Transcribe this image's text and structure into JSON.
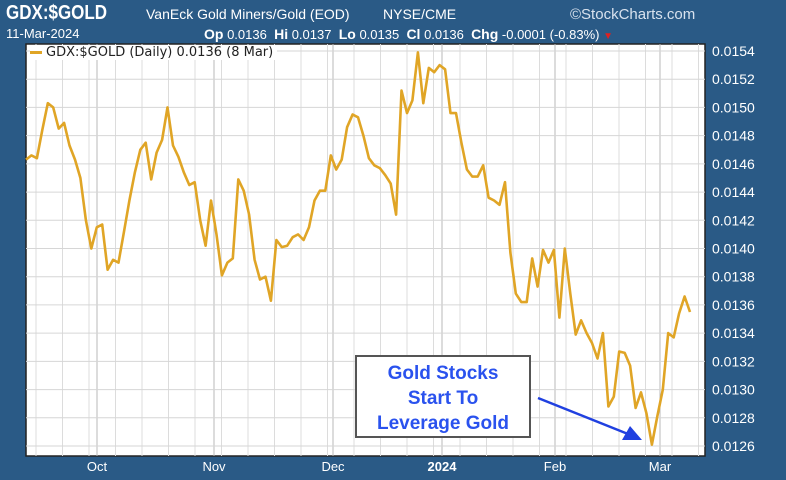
{
  "header": {
    "symbol": "GDX:$GOLD",
    "description": "VanEck Gold Miners/Gold (EOD)",
    "exchange": "NYSE/CME",
    "brand": "©StockCharts.com",
    "date": "11-Mar-2024",
    "op_label": "Op",
    "op": "0.0136",
    "hi_label": "Hi",
    "hi": "0.0137",
    "lo_label": "Lo",
    "lo": "0.0135",
    "cl_label": "Cl",
    "cl": "0.0136",
    "chg_label": "Chg",
    "chg": "-0.0001 (-0.83%)",
    "down_arrow": "▼"
  },
  "annotation": {
    "lines": [
      "Gold Stocks",
      "Start To",
      "Leverage Gold"
    ]
  },
  "colors": {
    "background": "#2a5a86",
    "line": "#e0a526",
    "annotation_text": "#2a52ee",
    "arrow": "#2040e0"
  },
  "chart_data": {
    "type": "line",
    "title": "GDX:$GOLD VanEck Gold Miners/Gold (EOD)",
    "legend": "GDX:$GOLD (Daily) 0.0136 (8 Mar)",
    "legend_position": "top-left",
    "xlabel": "",
    "ylabel": "",
    "x_ticks": [
      "Oct",
      "Nov",
      "Dec",
      "2024",
      "Feb",
      "Mar"
    ],
    "y_ticks": [
      "0.0154",
      "0.0152",
      "0.0150",
      "0.0148",
      "0.0146",
      "0.0144",
      "0.0142",
      "0.0140",
      "0.0138",
      "0.0136",
      "0.0134",
      "0.0132",
      "0.0130",
      "0.0128",
      "0.0126"
    ],
    "ylim": [
      0.01253,
      0.01555
    ],
    "grid": true,
    "series": [
      {
        "name": "GDX:$GOLD (Daily)",
        "values": [
          0.01463,
          0.01466,
          0.01464,
          0.01484,
          0.01503,
          0.015,
          0.01485,
          0.01489,
          0.01473,
          0.01463,
          0.0145,
          0.0142,
          0.014,
          0.01415,
          0.01417,
          0.01385,
          0.01392,
          0.0139,
          0.01412,
          0.01434,
          0.01454,
          0.0147,
          0.01475,
          0.01449,
          0.01468,
          0.01477,
          0.015,
          0.01473,
          0.01465,
          0.01454,
          0.01445,
          0.01447,
          0.0142,
          0.01402,
          0.01434,
          0.0141,
          0.01381,
          0.0139,
          0.01393,
          0.01449,
          0.01441,
          0.01424,
          0.01392,
          0.01378,
          0.0138,
          0.01363,
          0.01406,
          0.01401,
          0.01402,
          0.01408,
          0.0141,
          0.01406,
          0.01415,
          0.01434,
          0.01441,
          0.01441,
          0.01466,
          0.01456,
          0.01463,
          0.01486,
          0.01495,
          0.01493,
          0.0148,
          0.01464,
          0.01459,
          0.01457,
          0.01452,
          0.01446,
          0.01424,
          0.01512,
          0.01496,
          0.01505,
          0.01539,
          0.01503,
          0.01528,
          0.01525,
          0.0153,
          0.01527,
          0.01496,
          0.01496,
          0.01475,
          0.01456,
          0.01451,
          0.01451,
          0.01459,
          0.01436,
          0.01434,
          0.01431,
          0.01447,
          0.01397,
          0.01368,
          0.01362,
          0.01362,
          0.01393,
          0.01373,
          0.01399,
          0.0139,
          0.01399,
          0.01351,
          0.014,
          0.01368,
          0.01339,
          0.01349,
          0.0134,
          0.01333,
          0.01322,
          0.0134,
          0.01288,
          0.01295,
          0.01327,
          0.01326,
          0.01317,
          0.01287,
          0.01298,
          0.01283,
          0.01261,
          0.01281,
          0.013,
          0.0134,
          0.01337,
          0.01354,
          0.01366,
          0.01355
        ]
      }
    ]
  }
}
